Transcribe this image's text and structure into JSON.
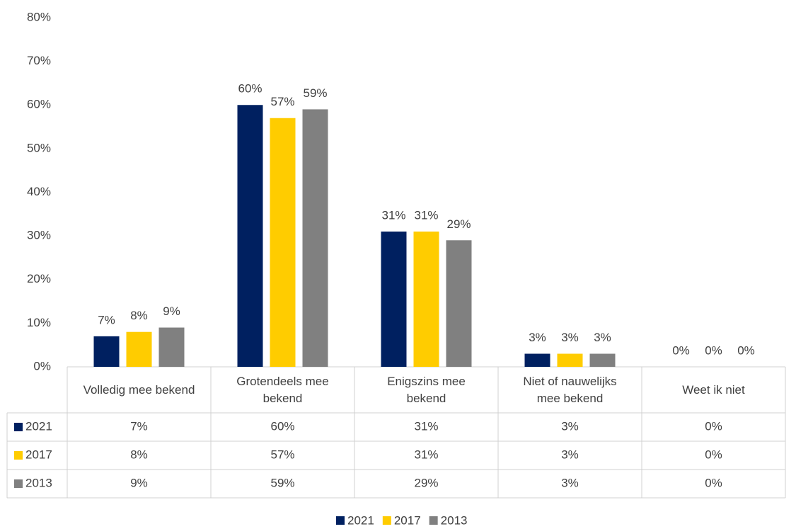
{
  "chart_data": {
    "type": "bar",
    "categories": [
      "Volledig mee bekend",
      "Grotendeels mee bekend",
      "Enigszins mee bekend",
      "Niet of nauwelijks mee bekend",
      "Weet ik niet"
    ],
    "series": [
      {
        "name": "2021",
        "color": "#002060",
        "values": [
          7,
          60,
          31,
          3,
          0
        ],
        "value_labels": [
          "7%",
          "60%",
          "31%",
          "3%",
          "0%"
        ]
      },
      {
        "name": "2017",
        "color": "#ffcc00",
        "values": [
          8,
          57,
          31,
          3,
          0
        ],
        "value_labels": [
          "8%",
          "57%",
          "31%",
          "3%",
          "0%"
        ]
      },
      {
        "name": "2013",
        "color": "#808080",
        "values": [
          9,
          59,
          29,
          3,
          0
        ],
        "value_labels": [
          "9%",
          "59%",
          "29%",
          "3%",
          "0%"
        ]
      }
    ],
    "ylim": [
      0,
      80
    ],
    "yticks": [
      {
        "value": 0,
        "label": "0%"
      },
      {
        "value": 10,
        "label": "10%"
      },
      {
        "value": 20,
        "label": "20%"
      },
      {
        "value": 30,
        "label": "30%"
      },
      {
        "value": 40,
        "label": "40%"
      },
      {
        "value": 50,
        "label": "50%"
      },
      {
        "value": 60,
        "label": "60%"
      },
      {
        "value": 70,
        "label": "70%"
      },
      {
        "value": 80,
        "label": "80%"
      }
    ],
    "grid": false
  }
}
